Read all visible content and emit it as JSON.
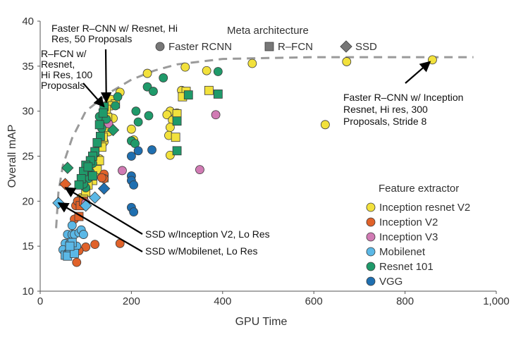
{
  "chart_data": {
    "type": "scatter",
    "xlabel": "GPU Time",
    "ylabel": "Overall mAP",
    "xlim": [
      0,
      1000
    ],
    "ylim": [
      10,
      40
    ],
    "x_ticks": [
      "0",
      "200",
      "400",
      "600",
      "800",
      "1,000"
    ],
    "y_ticks": [
      "10",
      "15",
      "20",
      "25",
      "30",
      "35",
      "40"
    ],
    "grid": false,
    "shape_legend": {
      "title": "Meta architecture",
      "entries": [
        {
          "label": "Faster RCNN",
          "shape": "circle"
        },
        {
          "label": "R–FCN",
          "shape": "square"
        },
        {
          "label": "SSD",
          "shape": "diamond"
        }
      ]
    },
    "color_legend": {
      "title": "Feature extractor",
      "entries": [
        {
          "label": "Inception resnet V2",
          "color": "#f2e13c"
        },
        {
          "label": "Inception V2",
          "color": "#e0622a"
        },
        {
          "label": "Inception V3",
          "color": "#d17bb4"
        },
        {
          "label": "Mobilenet",
          "color": "#5bb8e6"
        },
        {
          "label": "Resnet 101",
          "color": "#1f9a6a"
        },
        {
          "label": "VGG",
          "color": "#1f6fb0"
        }
      ]
    },
    "frontier": [
      [
        35,
        17
      ],
      [
        40,
        21
      ],
      [
        50,
        24
      ],
      [
        70,
        27
      ],
      [
        100,
        30
      ],
      [
        150,
        32
      ],
      [
        200,
        33.5
      ],
      [
        250,
        34.5
      ],
      [
        300,
        35.2
      ],
      [
        400,
        35.8
      ],
      [
        500,
        35.9
      ],
      [
        600,
        36
      ],
      [
        700,
        36
      ],
      [
        800,
        36
      ],
      [
        950,
        36
      ]
    ],
    "annotations": [
      {
        "text": "Faster R–CNN w/ Resnet, Hi Res, 50 Proposals",
        "lines": [
          "Faster R–CNN w/ Resnet, Hi",
          "Res, 50 Proposals"
        ],
        "target": [
          145,
          31
        ]
      },
      {
        "text": "R–FCN w/ Resnet, Hi Res, 100 Proposals",
        "lines": [
          "R–FCN w/",
          "Resnet,",
          "Hi Res, 100",
          "Proposals"
        ],
        "target": [
          140,
          30.5
        ]
      },
      {
        "text": "Faster R–CNN w/ Inception Resnet, Hi res, 300 Proposals, Stride 8",
        "lines": [
          "Faster R–CNN w/ Inception",
          "Resnet, Hi res, 300",
          "Proposals, Stride 8"
        ],
        "target": [
          855,
          35.5
        ]
      },
      {
        "text": "SSD w/Inception V2, Lo Res",
        "lines": [
          "SSD w/Inception V2, Lo Res"
        ],
        "target": [
          55,
          21.5
        ]
      },
      {
        "text": "SSD w/Mobilenet, Lo Res",
        "lines": [
          "SSD w/Mobilenet, Lo Res"
        ],
        "target": [
          40,
          19.8
        ]
      }
    ],
    "series": [
      {
        "name": "Inception resnet V2",
        "color": "#f2e13c",
        "points": [
          {
            "x": 860,
            "y": 35.7,
            "m": "circle"
          },
          {
            "x": 672,
            "y": 35.5,
            "m": "circle"
          },
          {
            "x": 465,
            "y": 35.3,
            "m": "circle"
          },
          {
            "x": 625,
            "y": 28.5,
            "m": "circle"
          },
          {
            "x": 365,
            "y": 34.5,
            "m": "circle"
          },
          {
            "x": 318,
            "y": 34.9,
            "m": "circle"
          },
          {
            "x": 235,
            "y": 34.2,
            "m": "circle"
          },
          {
            "x": 175,
            "y": 32.1,
            "m": "circle"
          },
          {
            "x": 155,
            "y": 31.3,
            "m": "circle"
          },
          {
            "x": 310,
            "y": 32.3,
            "m": "circle"
          },
          {
            "x": 285,
            "y": 30,
            "m": "circle"
          },
          {
            "x": 278,
            "y": 29.6,
            "m": "circle"
          },
          {
            "x": 290,
            "y": 29,
            "m": "circle"
          },
          {
            "x": 285,
            "y": 28.2,
            "m": "circle"
          },
          {
            "x": 282,
            "y": 27.3,
            "m": "circle"
          },
          {
            "x": 285,
            "y": 25.1,
            "m": "circle"
          },
          {
            "x": 200,
            "y": 28,
            "m": "circle"
          },
          {
            "x": 205,
            "y": 26.8,
            "m": "circle"
          },
          {
            "x": 160,
            "y": 29.2,
            "m": "circle"
          },
          {
            "x": 150,
            "y": 27.7,
            "m": "circle"
          },
          {
            "x": 140,
            "y": 26.6,
            "m": "circle"
          },
          {
            "x": 130,
            "y": 24.7,
            "m": "circle"
          },
          {
            "x": 120,
            "y": 23.2,
            "m": "circle"
          },
          {
            "x": 110,
            "y": 22.3,
            "m": "circle"
          },
          {
            "x": 100,
            "y": 21.4,
            "m": "circle"
          },
          {
            "x": 90,
            "y": 20.4,
            "m": "circle"
          },
          {
            "x": 300,
            "y": 29.8,
            "m": "circle"
          },
          {
            "x": 370,
            "y": 32.3,
            "m": "square"
          },
          {
            "x": 320,
            "y": 32.2,
            "m": "square"
          },
          {
            "x": 312,
            "y": 31.6,
            "m": "square"
          },
          {
            "x": 300,
            "y": 29.7,
            "m": "square"
          },
          {
            "x": 297,
            "y": 27.1,
            "m": "square"
          },
          {
            "x": 165,
            "y": 30.8,
            "m": "square"
          },
          {
            "x": 150,
            "y": 30.6,
            "m": "square"
          },
          {
            "x": 145,
            "y": 30.2,
            "m": "square"
          },
          {
            "x": 148,
            "y": 29.3,
            "m": "square"
          },
          {
            "x": 142,
            "y": 28.2,
            "m": "square"
          },
          {
            "x": 138,
            "y": 27.1,
            "m": "square"
          },
          {
            "x": 135,
            "y": 26,
            "m": "square"
          },
          {
            "x": 130,
            "y": 24.5,
            "m": "square"
          },
          {
            "x": 125,
            "y": 23.5,
            "m": "square"
          },
          {
            "x": 115,
            "y": 22.3,
            "m": "square"
          },
          {
            "x": 105,
            "y": 21.8,
            "m": "square"
          },
          {
            "x": 100,
            "y": 21,
            "m": "square"
          },
          {
            "x": 95,
            "y": 20.2,
            "m": "square"
          },
          {
            "x": 140,
            "y": 22.6,
            "m": "square"
          }
        ]
      },
      {
        "name": "Inception V2",
        "color": "#e0622a",
        "points": [
          {
            "x": 175,
            "y": 15.3,
            "m": "circle"
          },
          {
            "x": 120,
            "y": 15.2,
            "m": "circle"
          },
          {
            "x": 100,
            "y": 14.9,
            "m": "circle"
          },
          {
            "x": 80,
            "y": 13.2,
            "m": "circle"
          },
          {
            "x": 85,
            "y": 14.5,
            "m": "circle"
          },
          {
            "x": 90,
            "y": 16.5,
            "m": "circle"
          },
          {
            "x": 75,
            "y": 18,
            "m": "circle"
          },
          {
            "x": 78,
            "y": 19.5,
            "m": "circle"
          },
          {
            "x": 82,
            "y": 20,
            "m": "circle"
          },
          {
            "x": 140,
            "y": 23,
            "m": "circle"
          },
          {
            "x": 140,
            "y": 22.5,
            "m": "circle"
          },
          {
            "x": 135,
            "y": 22.6,
            "m": "circle"
          },
          {
            "x": 85,
            "y": 18.3,
            "m": "square"
          },
          {
            "x": 88,
            "y": 19.5,
            "m": "square"
          },
          {
            "x": 95,
            "y": 20,
            "m": "square"
          },
          {
            "x": 55,
            "y": 21.9,
            "m": "diamond"
          }
        ]
      },
      {
        "name": "Inception V3",
        "color": "#d17bb4",
        "points": [
          {
            "x": 385,
            "y": 29.6,
            "m": "circle"
          },
          {
            "x": 350,
            "y": 23.5,
            "m": "circle"
          },
          {
            "x": 180,
            "y": 23.4,
            "m": "circle"
          },
          {
            "x": 150,
            "y": 28.6,
            "m": "circle"
          },
          {
            "x": 100,
            "y": 19.8,
            "m": "circle"
          }
        ]
      },
      {
        "name": "Mobilenet",
        "color": "#5bb8e6",
        "points": [
          {
            "x": 70,
            "y": 17.3,
            "m": "circle"
          },
          {
            "x": 60,
            "y": 16.3,
            "m": "circle"
          },
          {
            "x": 70,
            "y": 16.3,
            "m": "circle"
          },
          {
            "x": 55,
            "y": 15.3,
            "m": "circle"
          },
          {
            "x": 65,
            "y": 15.3,
            "m": "circle"
          },
          {
            "x": 50,
            "y": 14.6,
            "m": "circle"
          },
          {
            "x": 60,
            "y": 14.2,
            "m": "circle"
          },
          {
            "x": 70,
            "y": 14.2,
            "m": "circle"
          },
          {
            "x": 75,
            "y": 16.3,
            "m": "circle"
          },
          {
            "x": 80,
            "y": 15,
            "m": "circle"
          },
          {
            "x": 85,
            "y": 16.5,
            "m": "circle"
          },
          {
            "x": 90,
            "y": 16.8,
            "m": "circle"
          },
          {
            "x": 95,
            "y": 16.3,
            "m": "circle"
          },
          {
            "x": 55,
            "y": 14,
            "m": "square"
          },
          {
            "x": 65,
            "y": 14.5,
            "m": "square"
          },
          {
            "x": 60,
            "y": 13.9,
            "m": "square"
          },
          {
            "x": 70,
            "y": 15.4,
            "m": "square"
          },
          {
            "x": 75,
            "y": 14.2,
            "m": "square"
          },
          {
            "x": 65,
            "y": 15,
            "m": "square"
          },
          {
            "x": 40,
            "y": 19.8,
            "m": "diamond"
          },
          {
            "x": 120,
            "y": 20.4,
            "m": "diamond"
          },
          {
            "x": 100,
            "y": 19.5,
            "m": "diamond"
          }
        ]
      },
      {
        "name": "Resnet 101",
        "color": "#1f9a6a",
        "points": [
          {
            "x": 390,
            "y": 34.4,
            "m": "circle"
          },
          {
            "x": 270,
            "y": 33.7,
            "m": "circle"
          },
          {
            "x": 235,
            "y": 32.7,
            "m": "circle"
          },
          {
            "x": 248,
            "y": 32.2,
            "m": "circle"
          },
          {
            "x": 210,
            "y": 30,
            "m": "circle"
          },
          {
            "x": 238,
            "y": 29.5,
            "m": "circle"
          },
          {
            "x": 215,
            "y": 28.8,
            "m": "circle"
          },
          {
            "x": 200,
            "y": 26.7,
            "m": "circle"
          },
          {
            "x": 208,
            "y": 26.4,
            "m": "circle"
          },
          {
            "x": 170,
            "y": 31.6,
            "m": "circle"
          },
          {
            "x": 165,
            "y": 30.6,
            "m": "circle"
          },
          {
            "x": 130,
            "y": 29.4,
            "m": "circle"
          },
          {
            "x": 145,
            "y": 29.1,
            "m": "circle"
          },
          {
            "x": 135,
            "y": 28.1,
            "m": "circle"
          },
          {
            "x": 125,
            "y": 26.4,
            "m": "circle"
          },
          {
            "x": 120,
            "y": 25.3,
            "m": "circle"
          },
          {
            "x": 115,
            "y": 24.2,
            "m": "circle"
          },
          {
            "x": 110,
            "y": 23.2,
            "m": "circle"
          },
          {
            "x": 105,
            "y": 22.5,
            "m": "circle"
          },
          {
            "x": 100,
            "y": 21.5,
            "m": "circle"
          },
          {
            "x": 95,
            "y": 21.9,
            "m": "circle"
          },
          {
            "x": 390,
            "y": 31.9,
            "m": "square"
          },
          {
            "x": 325,
            "y": 31.8,
            "m": "square"
          },
          {
            "x": 300,
            "y": 28.9,
            "m": "square"
          },
          {
            "x": 300,
            "y": 25.6,
            "m": "square"
          },
          {
            "x": 140,
            "y": 30.5,
            "m": "square"
          },
          {
            "x": 130,
            "y": 28.5,
            "m": "square"
          },
          {
            "x": 138,
            "y": 29.8,
            "m": "square"
          },
          {
            "x": 132,
            "y": 27.2,
            "m": "square"
          },
          {
            "x": 125,
            "y": 26.5,
            "m": "square"
          },
          {
            "x": 120,
            "y": 25.5,
            "m": "square"
          },
          {
            "x": 115,
            "y": 25,
            "m": "square"
          },
          {
            "x": 110,
            "y": 24.5,
            "m": "square"
          },
          {
            "x": 100,
            "y": 24,
            "m": "square"
          },
          {
            "x": 95,
            "y": 23.3,
            "m": "square"
          },
          {
            "x": 90,
            "y": 22.5,
            "m": "square"
          },
          {
            "x": 85,
            "y": 21.8,
            "m": "square"
          },
          {
            "x": 105,
            "y": 23.8,
            "m": "square"
          },
          {
            "x": 115,
            "y": 22.8,
            "m": "square"
          },
          {
            "x": 60,
            "y": 23.7,
            "m": "diamond"
          },
          {
            "x": 160,
            "y": 27.9,
            "m": "diamond"
          }
        ]
      },
      {
        "name": "VGG",
        "color": "#1f6fb0",
        "points": [
          {
            "x": 245,
            "y": 25.7,
            "m": "circle"
          },
          {
            "x": 215,
            "y": 25.6,
            "m": "circle"
          },
          {
            "x": 200,
            "y": 25,
            "m": "circle"
          },
          {
            "x": 200,
            "y": 22.8,
            "m": "circle"
          },
          {
            "x": 200,
            "y": 22.3,
            "m": "circle"
          },
          {
            "x": 205,
            "y": 21.8,
            "m": "circle"
          },
          {
            "x": 200,
            "y": 19.3,
            "m": "circle"
          },
          {
            "x": 205,
            "y": 18.8,
            "m": "circle"
          },
          {
            "x": 140,
            "y": 21.4,
            "m": "diamond"
          }
        ]
      }
    ]
  }
}
